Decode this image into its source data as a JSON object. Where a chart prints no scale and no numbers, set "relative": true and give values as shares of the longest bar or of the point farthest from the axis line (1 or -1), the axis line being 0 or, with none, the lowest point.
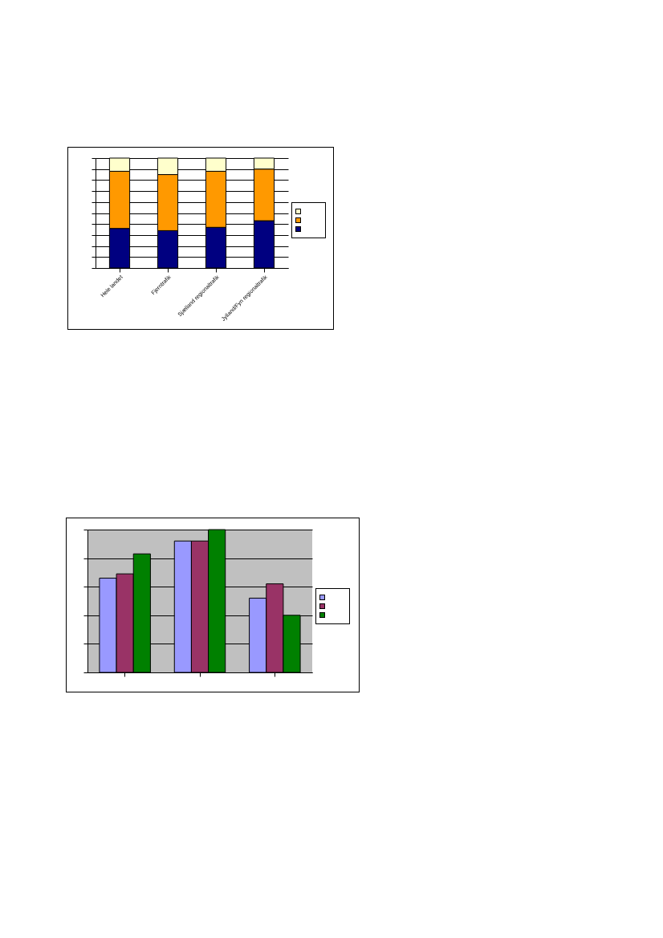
{
  "chart_data": [
    {
      "type": "bar",
      "relative": true,
      "stacked": true,
      "grid": "y",
      "categories": [
        "Hele landet",
        "Fjerntrafik",
        "Sjælland regionaltrafik",
        "Jylland/Fyn regionaltrafik"
      ],
      "series": [
        {
          "color": "#000080",
          "values": [
            0.36,
            0.34,
            0.37,
            0.43
          ]
        },
        {
          "color": "#ff9900",
          "values": [
            0.52,
            0.51,
            0.51,
            0.47
          ]
        },
        {
          "color": "#ffffcc",
          "values": [
            0.12,
            0.15,
            0.12,
            0.1
          ]
        }
      ]
    },
    {
      "type": "bar",
      "relative": true,
      "grid": "y",
      "categories": [
        null,
        null,
        null
      ],
      "series": [
        {
          "color": "#9999ff",
          "values": [
            0.66,
            0.92,
            0.52
          ]
        },
        {
          "color": "#993366",
          "values": [
            0.69,
            0.92,
            0.62
          ]
        },
        {
          "color": "#008000",
          "values": [
            0.83,
            1,
            0.4
          ]
        }
      ]
    }
  ]
}
